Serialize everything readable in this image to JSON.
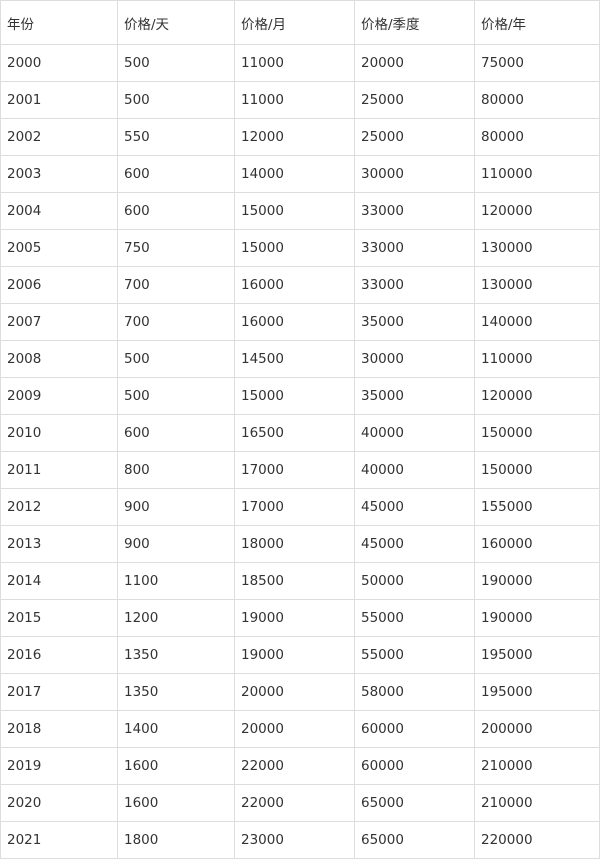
{
  "table": {
    "headers": [
      "年份",
      "价格/天",
      "价格/月",
      "价格/季度",
      "价格/年"
    ],
    "rows": [
      [
        "2000",
        "500",
        "11000",
        "20000",
        "75000"
      ],
      [
        "2001",
        "500",
        "11000",
        "25000",
        "80000"
      ],
      [
        "2002",
        "550",
        "12000",
        "25000",
        "80000"
      ],
      [
        "2003",
        "600",
        "14000",
        "30000",
        "110000"
      ],
      [
        "2004",
        "600",
        "15000",
        "33000",
        "120000"
      ],
      [
        "2005",
        "750",
        "15000",
        "33000",
        "130000"
      ],
      [
        "2006",
        "700",
        "16000",
        "33000",
        "130000"
      ],
      [
        "2007",
        "700",
        "16000",
        "35000",
        "140000"
      ],
      [
        "2008",
        "500",
        "14500",
        "30000",
        "110000"
      ],
      [
        "2009",
        "500",
        "15000",
        "35000",
        "120000"
      ],
      [
        "2010",
        "600",
        "16500",
        "40000",
        "150000"
      ],
      [
        "2011",
        "800",
        "17000",
        "40000",
        "150000"
      ],
      [
        "2012",
        "900",
        "17000",
        "45000",
        "155000"
      ],
      [
        "2013",
        "900",
        "18000",
        "45000",
        "160000"
      ],
      [
        "2014",
        "1100",
        "18500",
        "50000",
        "190000"
      ],
      [
        "2015",
        "1200",
        "19000",
        "55000",
        "190000"
      ],
      [
        "2016",
        "1350",
        "19000",
        "55000",
        "195000"
      ],
      [
        "2017",
        "1350",
        "20000",
        "58000",
        "195000"
      ],
      [
        "2018",
        "1400",
        "20000",
        "60000",
        "200000"
      ],
      [
        "2019",
        "1600",
        "22000",
        "60000",
        "210000"
      ],
      [
        "2020",
        "1600",
        "22000",
        "65000",
        "210000"
      ],
      [
        "2021",
        "1800",
        "23000",
        "65000",
        "220000"
      ]
    ]
  }
}
